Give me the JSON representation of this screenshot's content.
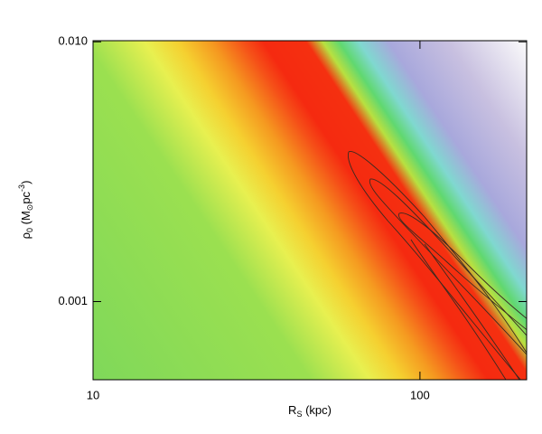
{
  "chart_data": {
    "type": "image",
    "x_label": [
      "R",
      "S",
      " (kpc)"
    ],
    "y_label": [
      "ρ",
      "0",
      " (M",
      "⊙",
      "pc",
      "-3",
      ")"
    ],
    "xscale": "log",
    "yscale": "log",
    "xlim": [
      10,
      212
    ],
    "ylim": [
      0.0005,
      0.0101
    ],
    "xticks": [
      10,
      100
    ],
    "yticks": [
      {
        "value": 0.001,
        "label": "0.001"
      },
      {
        "value": 0.01,
        "label": "0.010"
      }
    ]
  }
}
